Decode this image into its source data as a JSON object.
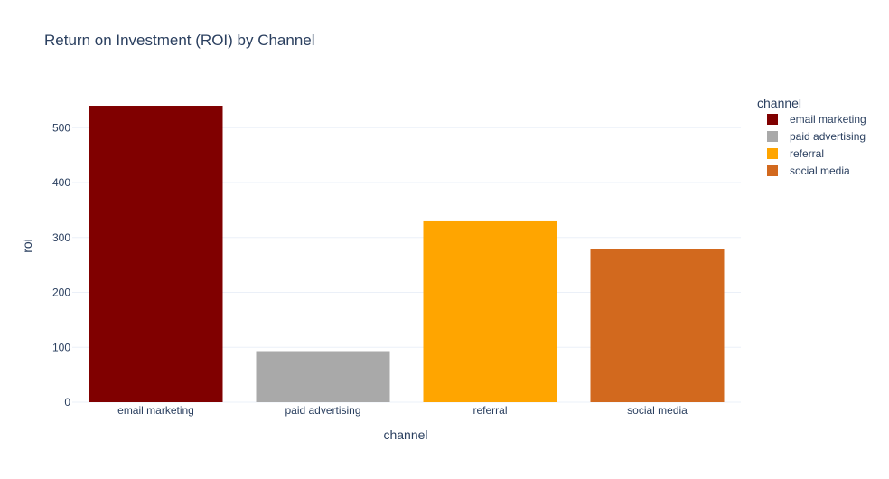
{
  "chart_data": {
    "type": "bar",
    "title": "Return on Investment (ROI) by Channel",
    "xlabel": "channel",
    "ylabel": "roi",
    "categories": [
      "email marketing",
      "paid advertising",
      "referral",
      "social media"
    ],
    "values": [
      540,
      93,
      331,
      279
    ],
    "colors": [
      "#800000",
      "#A9A9A9",
      "#FFA500",
      "#D2691E"
    ],
    "ylim": [
      0,
      568
    ],
    "yticks": [
      0,
      100,
      200,
      300,
      400,
      500
    ],
    "grid": true,
    "legend": {
      "title": "channel",
      "placement": "top-right",
      "entries": [
        "email marketing",
        "paid advertising",
        "referral",
        "social media"
      ]
    }
  }
}
